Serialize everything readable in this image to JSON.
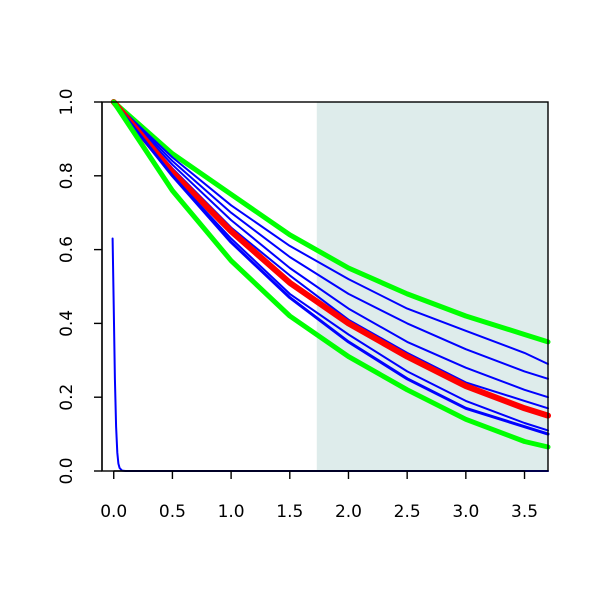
{
  "chart_data": {
    "type": "line",
    "title": "",
    "xlabel": "",
    "ylabel": "",
    "xlim": [
      -0.1,
      3.7
    ],
    "ylim": [
      0.0,
      1.0
    ],
    "x_ticks": [
      {
        "value": 0.0,
        "label": "0.0"
      },
      {
        "value": 0.5,
        "label": "0.5"
      },
      {
        "value": 1.0,
        "label": "1.0"
      },
      {
        "value": 1.5,
        "label": "1.5"
      },
      {
        "value": 2.0,
        "label": "2.0"
      },
      {
        "value": 2.5,
        "label": "2.5"
      },
      {
        "value": 3.0,
        "label": "3.0"
      },
      {
        "value": 3.5,
        "label": "3.5"
      }
    ],
    "y_ticks": [
      {
        "value": 0.0,
        "label": "0.0"
      },
      {
        "value": 0.2,
        "label": "0.2"
      },
      {
        "value": 0.4,
        "label": "0.4"
      },
      {
        "value": 0.6,
        "label": "0.6"
      },
      {
        "value": 0.8,
        "label": "0.8"
      },
      {
        "value": 1.0,
        "label": "1.0"
      }
    ],
    "shaded_region": {
      "x_from": 1.73,
      "x_to": 3.7,
      "color": "#deeceb"
    },
    "grid": false,
    "legend": "none",
    "series": [
      {
        "color": "#00ff00",
        "width": 5,
        "x": [
          0,
          0.5,
          1,
          1.5,
          2,
          2.5,
          3,
          3.5,
          3.7
        ],
        "y": [
          1.0,
          0.86,
          0.75,
          0.64,
          0.55,
          0.48,
          0.42,
          0.37,
          0.35
        ]
      },
      {
        "color": "#0000ff",
        "width": 2,
        "x": [
          0,
          0.5,
          1,
          1.5,
          2,
          2.5,
          3,
          3.5,
          3.7
        ],
        "y": [
          1.0,
          0.85,
          0.72,
          0.61,
          0.52,
          0.44,
          0.38,
          0.32,
          0.29
        ]
      },
      {
        "color": "#0000ff",
        "width": 2,
        "x": [
          0,
          0.5,
          1,
          1.5,
          2,
          2.5,
          3,
          3.5,
          3.7
        ],
        "y": [
          1.0,
          0.84,
          0.7,
          0.58,
          0.48,
          0.4,
          0.33,
          0.27,
          0.25
        ]
      },
      {
        "color": "#0000ff",
        "width": 2,
        "x": [
          0,
          0.5,
          1,
          1.5,
          2,
          2.5,
          3,
          3.5,
          3.7
        ],
        "y": [
          1.0,
          0.83,
          0.68,
          0.55,
          0.44,
          0.35,
          0.28,
          0.22,
          0.2
        ]
      },
      {
        "color": "#0000ff",
        "width": 2,
        "x": [
          0,
          0.5,
          1,
          1.5,
          2,
          2.5,
          3,
          3.5,
          3.7
        ],
        "y": [
          1.0,
          0.82,
          0.66,
          0.53,
          0.41,
          0.32,
          0.24,
          0.19,
          0.17
        ]
      },
      {
        "color": "#ff0000",
        "width": 6,
        "x": [
          0,
          0.5,
          1,
          1.5,
          2,
          2.5,
          3,
          3.5,
          3.7
        ],
        "y": [
          1.0,
          0.81,
          0.65,
          0.51,
          0.4,
          0.31,
          0.23,
          0.17,
          0.15
        ]
      },
      {
        "color": "#0000ff",
        "width": 2,
        "x": [
          0,
          0.5,
          1,
          1.5,
          2,
          2.5,
          3,
          3.5,
          3.7
        ],
        "y": [
          1.0,
          0.8,
          0.63,
          0.48,
          0.37,
          0.27,
          0.19,
          0.13,
          0.11
        ]
      },
      {
        "color": "#0000ff",
        "width": 3,
        "x": [
          0,
          0.5,
          1,
          1.5,
          2,
          2.5,
          3,
          3.5,
          3.7
        ],
        "y": [
          1.0,
          0.8,
          0.62,
          0.47,
          0.35,
          0.25,
          0.17,
          0.12,
          0.1
        ]
      },
      {
        "color": "#00ff00",
        "width": 5,
        "x": [
          0,
          0.5,
          1,
          1.5,
          2,
          2.5,
          3,
          3.5,
          3.7
        ],
        "y": [
          1.0,
          0.76,
          0.57,
          0.42,
          0.31,
          0.22,
          0.14,
          0.08,
          0.065
        ]
      },
      {
        "color": "#0000ff",
        "width": 2,
        "x": [
          -0.01,
          0,
          0.01,
          0.02,
          0.03,
          0.04,
          0.05,
          0.07,
          0.1,
          3.7
        ],
        "y": [
          0.63,
          0.45,
          0.25,
          0.12,
          0.05,
          0.02,
          0.008,
          0.001,
          0.0,
          0.0
        ]
      }
    ]
  }
}
